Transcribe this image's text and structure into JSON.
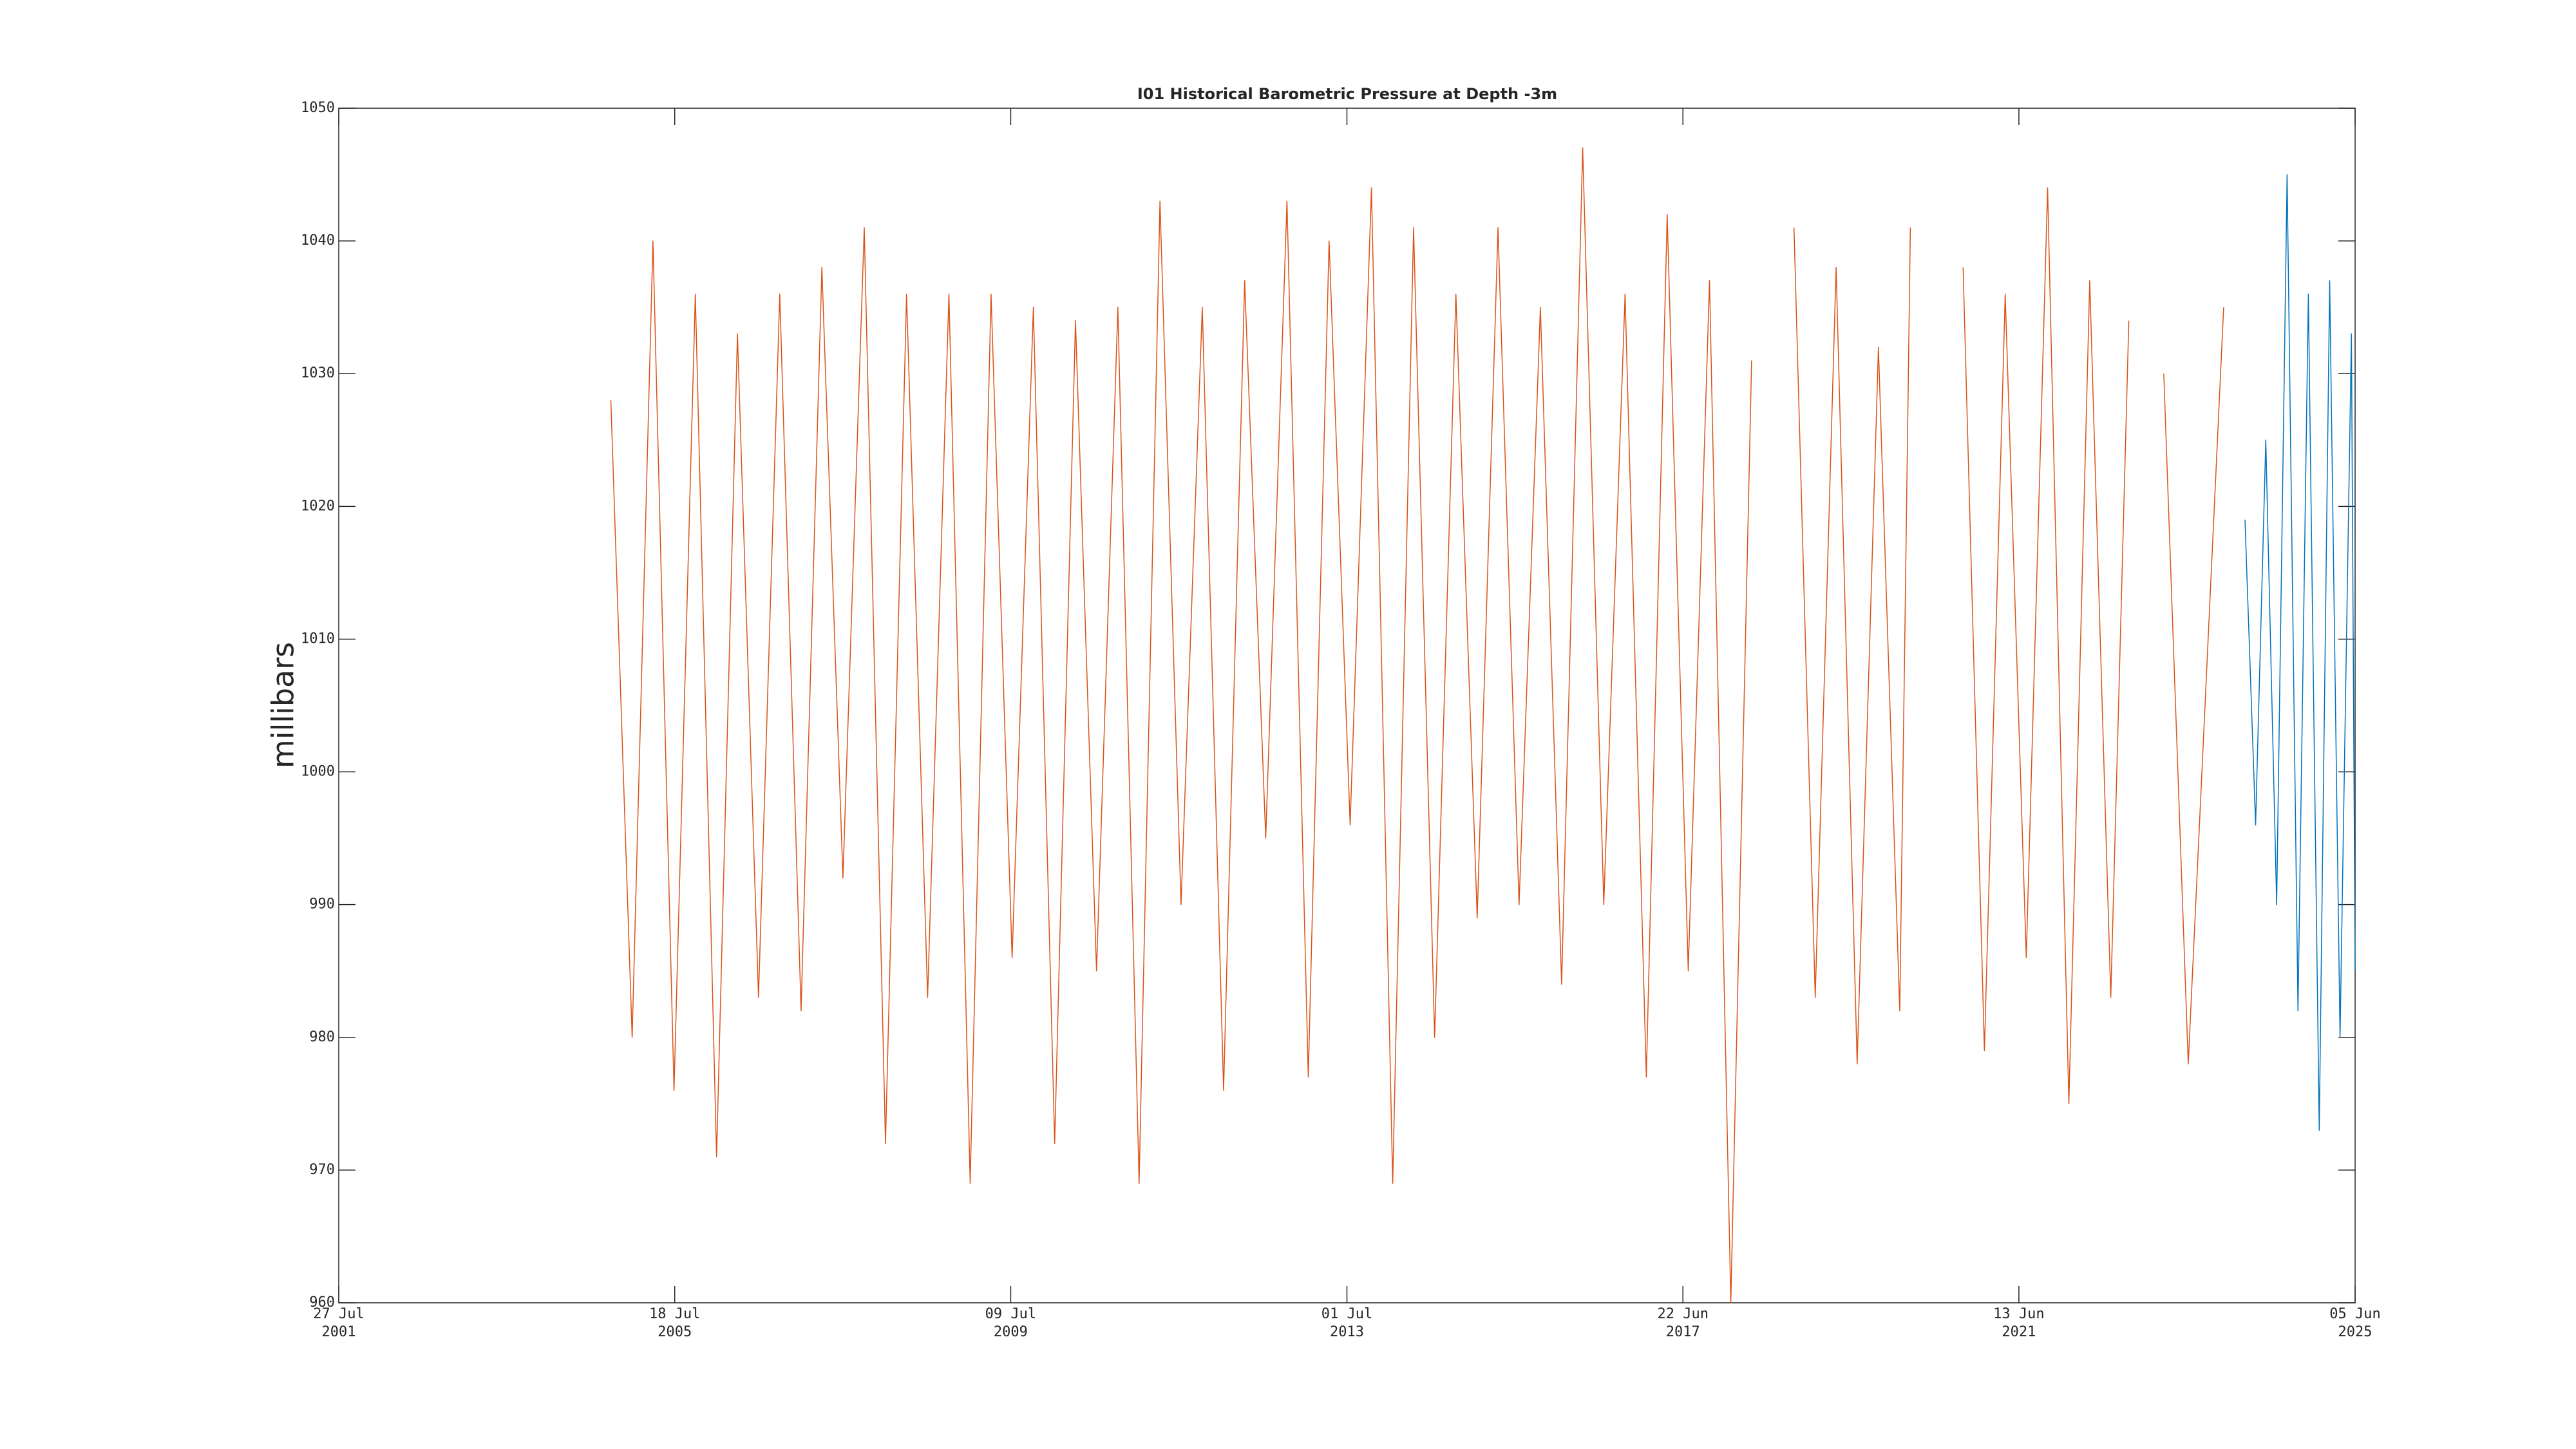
{
  "chart_data": {
    "type": "line",
    "title": "I01 Historical Barometric Pressure at Depth -3m",
    "ylabel": "millibars",
    "xlim": [
      "2001-07-27",
      "2025-06-05"
    ],
    "xticks": [
      {
        "value": "2001-07-27",
        "label": [
          "27 Jul",
          "2001"
        ]
      },
      {
        "value": "2005-07-18",
        "label": [
          "18 Jul",
          "2005"
        ]
      },
      {
        "value": "2009-07-09",
        "label": [
          "09 Jul",
          "2009"
        ]
      },
      {
        "value": "2013-07-01",
        "label": [
          "01 Jul",
          "2013"
        ]
      },
      {
        "value": "2017-06-22",
        "label": [
          "22 Jun",
          "2017"
        ]
      },
      {
        "value": "2021-06-13",
        "label": [
          "13 Jun",
          "2021"
        ]
      },
      {
        "value": "2025-06-05",
        "label": [
          "05 Jun",
          "2025"
        ]
      }
    ],
    "ylim": [
      960,
      1050
    ],
    "yticks": [
      960,
      970,
      980,
      990,
      1000,
      1010,
      1020,
      1030,
      1040,
      1050
    ],
    "grid": false,
    "series": [
      {
        "color": "#d95319",
        "x": [
          "2004-10-15",
          "2005-01-15",
          "2005-04-15",
          "2005-07-15",
          "2005-10-15",
          "2006-01-15",
          "2006-04-15",
          "2006-07-15",
          "2006-10-15",
          "2007-01-15",
          "2007-04-15",
          "2007-07-15",
          "2007-10-15",
          "2008-01-15",
          "2008-04-15",
          "2008-07-15",
          "2008-10-15",
          "2009-01-15",
          "2009-04-15",
          "2009-07-15",
          "2009-10-15",
          "2010-01-15",
          "2010-04-15",
          "2010-07-15",
          "2010-10-15",
          "2011-01-15",
          "2011-04-15",
          "2011-07-15",
          "2011-10-15",
          "2012-01-15",
          "2012-04-15",
          "2012-07-15",
          "2012-10-15",
          "2013-01-15",
          "2013-04-15",
          "2013-07-15",
          "2013-10-15",
          "2014-01-15",
          "2014-04-15",
          "2014-07-15",
          "2014-10-15",
          "2015-01-15",
          "2015-04-15",
          "2015-07-15",
          "2015-10-15",
          "2016-01-15",
          "2016-04-15",
          "2016-07-15",
          "2016-10-15",
          "2017-01-15",
          "2017-04-15",
          "2017-07-15",
          "2017-10-15",
          "2018-01-15",
          "2018-04-15",
          "2018-08-01",
          "2018-10-15",
          "2019-01-15",
          "2019-04-15",
          "2019-07-15",
          "2019-10-15",
          "2020-01-15",
          "2020-03-01",
          "2020-06-01",
          "2020-10-15",
          "2021-01-15",
          "2021-04-15",
          "2021-07-15",
          "2021-10-15",
          "2022-01-15",
          "2022-04-15",
          "2022-07-15",
          "2022-10-01",
          "2023-01-01",
          "2023-03-01",
          "2023-06-15",
          "2023-11-15"
        ],
        "values": [
          1028,
          980,
          1040,
          976,
          1036,
          971,
          1033,
          983,
          1036,
          982,
          1038,
          992,
          1041,
          972,
          1036,
          983,
          1036,
          969,
          1036,
          986,
          1035,
          972,
          1034,
          985,
          1035,
          969,
          1043,
          990,
          1035,
          976,
          1037,
          995,
          1043,
          977,
          1040,
          996,
          1044,
          969,
          1041,
          980,
          1036,
          989,
          1041,
          990,
          1035,
          984,
          1047,
          990,
          1036,
          977,
          1042,
          985,
          1037,
          960,
          1031,
          null,
          1041,
          983,
          1038,
          978,
          1032,
          982,
          1041,
          null,
          1038,
          979,
          1036,
          986,
          1044,
          975,
          1037,
          983,
          1034,
          null,
          1030,
          978,
          1035
        ]
      },
      {
        "color": "#0072bd",
        "x": [
          "2024-02-15",
          "2024-04-01",
          "2024-05-15",
          "2024-07-01",
          "2024-08-15",
          "2024-10-01",
          "2024-11-15",
          "2025-01-01",
          "2025-02-15",
          "2025-04-01",
          "2025-05-20",
          "2025-06-05"
        ],
        "values": [
          1019,
          996,
          1025,
          990,
          1045,
          982,
          1036,
          973,
          1037,
          980,
          1033,
          985
        ]
      }
    ]
  }
}
